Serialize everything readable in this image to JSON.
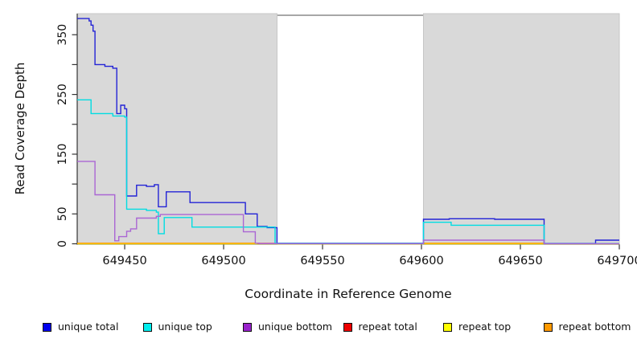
{
  "chart_data": {
    "type": "line",
    "title": "",
    "xlabel": "Coordinate in Reference Genome",
    "ylabel": "Read Coverage Depth",
    "xlim": [
      649426,
      649700
    ],
    "ylim": [
      0,
      385
    ],
    "grid": false,
    "x_ticks": [
      {
        "v": 649450,
        "label": "649450"
      },
      {
        "v": 649500,
        "label": "649500"
      },
      {
        "v": 649550,
        "label": "649550"
      },
      {
        "v": 649600,
        "label": "649600"
      },
      {
        "v": 649650,
        "label": "649650"
      },
      {
        "v": 649700,
        "label": "649700"
      }
    ],
    "y_ticks": [
      {
        "v": 0,
        "label": "0"
      },
      {
        "v": 50,
        "label": "50"
      },
      {
        "v": 100,
        "label": ""
      },
      {
        "v": 150,
        "label": "150"
      },
      {
        "v": 200,
        "label": ""
      },
      {
        "v": 250,
        "label": "250"
      },
      {
        "v": 300,
        "label": ""
      },
      {
        "v": 350,
        "label": "350"
      }
    ],
    "shaded_regions": [
      {
        "x0": 649426,
        "x1": 649527,
        "color": "#d9d9d9"
      },
      {
        "x0": 649601,
        "x1": 649700,
        "color": "#d9d9d9"
      }
    ],
    "gap_top_line": {
      "x0": 649527,
      "x1": 649601,
      "color": "#8a8a8a"
    },
    "series": [
      {
        "id": "unique_total",
        "name": "unique total",
        "color": "#2323d6",
        "segments": [
          [
            [
              649426,
              377
            ],
            [
              649432,
              377
            ],
            [
              649432,
              373
            ],
            [
              649433,
              373
            ],
            [
              649433,
              366
            ],
            [
              649434,
              366
            ],
            [
              649434,
              356
            ],
            [
              649435,
              356
            ],
            [
              649435,
              300
            ],
            [
              649440,
              300
            ],
            [
              649440,
              297
            ],
            [
              649444,
              297
            ],
            [
              649444,
              294
            ],
            [
              649446,
              294
            ],
            [
              649446,
              218
            ],
            [
              649448,
              218
            ],
            [
              649448,
              232
            ],
            [
              649450,
              232
            ],
            [
              649450,
              226
            ],
            [
              649451,
              226
            ],
            [
              649451,
              80
            ],
            [
              649456,
              80
            ],
            [
              649456,
              98
            ],
            [
              649461,
              98
            ],
            [
              649461,
              96
            ],
            [
              649465,
              96
            ],
            [
              649465,
              99
            ],
            [
              649467,
              99
            ],
            [
              649467,
              62
            ],
            [
              649471,
              62
            ],
            [
              649471,
              87
            ],
            [
              649483,
              87
            ],
            [
              649483,
              69
            ],
            [
              649511,
              69
            ],
            [
              649511,
              50
            ],
            [
              649517,
              50
            ],
            [
              649517,
              29
            ],
            [
              649522,
              29
            ],
            [
              649522,
              27
            ],
            [
              649527,
              27
            ],
            [
              649527,
              1
            ],
            [
              649601,
              1
            ],
            [
              649601,
              41
            ],
            [
              649614,
              41
            ],
            [
              649614,
              42
            ],
            [
              649637,
              42
            ],
            [
              649637,
              41
            ],
            [
              649662,
              41
            ],
            [
              649662,
              0.5
            ],
            [
              649688,
              0.5
            ],
            [
              649688,
              6
            ],
            [
              649700,
              6
            ]
          ]
        ]
      },
      {
        "id": "unique_top",
        "name": "unique top",
        "color": "#00dde2",
        "segments": [
          [
            [
              649426,
              241
            ],
            [
              649433,
              241
            ],
            [
              649433,
              218
            ],
            [
              649444,
              218
            ],
            [
              649444,
              214
            ],
            [
              649450,
              214
            ],
            [
              649450,
              212
            ],
            [
              649451,
              212
            ],
            [
              649451,
              58
            ],
            [
              649461,
              58
            ],
            [
              649461,
              56
            ],
            [
              649466,
              56
            ],
            [
              649466,
              53
            ],
            [
              649467,
              53
            ],
            [
              649467,
              17
            ],
            [
              649470,
              17
            ],
            [
              649470,
              44
            ],
            [
              649484,
              44
            ],
            [
              649484,
              28
            ],
            [
              649526,
              28
            ],
            [
              649526,
              0.8
            ],
            [
              649601,
              0.8
            ],
            [
              649601,
              36
            ],
            [
              649615,
              36
            ],
            [
              649615,
              31
            ],
            [
              649662,
              31
            ],
            [
              649662,
              0.3
            ],
            [
              649700,
              0.3
            ]
          ]
        ]
      },
      {
        "id": "unique_bottom",
        "name": "unique bottom",
        "color": "#aa66d4",
        "segments": [
          [
            [
              649426,
              138
            ],
            [
              649435,
              138
            ],
            [
              649435,
              82
            ],
            [
              649445,
              82
            ],
            [
              649445,
              5
            ],
            [
              649447,
              5
            ],
            [
              649447,
              12
            ],
            [
              649451,
              12
            ],
            [
              649451,
              21
            ],
            [
              649453,
              21
            ],
            [
              649453,
              25
            ],
            [
              649456,
              25
            ],
            [
              649456,
              43
            ],
            [
              649466,
              43
            ],
            [
              649466,
              46
            ],
            [
              649468,
              46
            ],
            [
              649468,
              49
            ],
            [
              649510,
              49
            ],
            [
              649510,
              20
            ],
            [
              649516,
              20
            ],
            [
              649516,
              1
            ],
            [
              649518,
              1
            ],
            [
              649518,
              0.3
            ],
            [
              649601,
              0.3
            ],
            [
              649601,
              6
            ],
            [
              649662,
              6
            ],
            [
              649662,
              0.2
            ],
            [
              649700,
              0.2
            ]
          ]
        ]
      },
      {
        "id": "repeat_total",
        "name": "repeat total",
        "color": "#dd1111",
        "segments": [
          [
            [
              649517,
              0.5
            ],
            [
              649527,
              0.5
            ]
          ],
          [
            [
              649663,
              0.3
            ],
            [
              649700,
              0.3
            ]
          ]
        ]
      },
      {
        "id": "repeat_top",
        "name": "repeat top",
        "color": "#eded00",
        "segments": [
          [
            [
              649426,
              0
            ],
            [
              649700,
              0
            ]
          ]
        ]
      },
      {
        "id": "repeat_bottom",
        "name": "repeat bottom",
        "color": "#ff9900",
        "segments": [
          [
            [
              649426,
              1
            ],
            [
              649516,
              1
            ],
            [
              649516,
              0.2
            ]
          ],
          [
            [
              649601,
              0.2
            ],
            [
              649601,
              1
            ],
            [
              649662,
              1
            ],
            [
              649662,
              0.2
            ]
          ]
        ]
      }
    ]
  },
  "legend": {
    "items": [
      {
        "id": "unique-total",
        "label": "unique total",
        "color": "#0000ee"
      },
      {
        "id": "unique-top",
        "label": "unique top",
        "color": "#00eeee"
      },
      {
        "id": "unique-bottom",
        "label": "unique bottom",
        "color": "#9922cc"
      },
      {
        "id": "repeat-total",
        "label": "repeat total",
        "color": "#ee0000"
      },
      {
        "id": "repeat-top",
        "label": "repeat top",
        "color": "#ffff00"
      },
      {
        "id": "repeat-bottom",
        "label": "repeat bottom",
        "color": "#ff9900"
      }
    ]
  }
}
